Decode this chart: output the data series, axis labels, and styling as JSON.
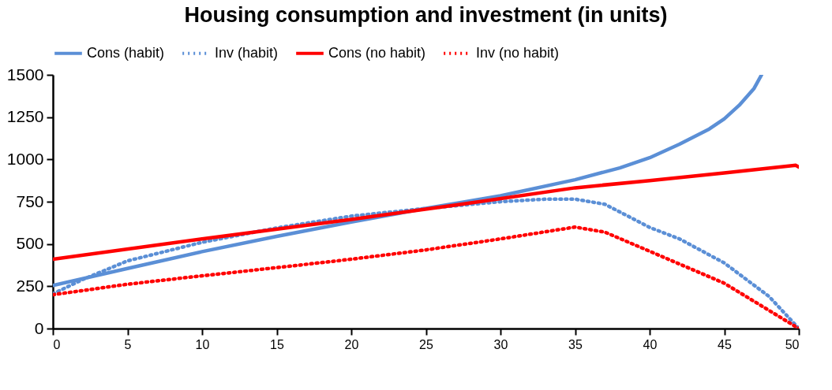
{
  "chart_data": {
    "type": "line",
    "title": "Housing consumption and investment (in units)",
    "xlim": [
      0,
      50
    ],
    "xticks": [
      0,
      5,
      10,
      15,
      20,
      25,
      30,
      35,
      40,
      45,
      50
    ],
    "ylim": [
      0,
      1500
    ],
    "yticks": [
      0,
      250,
      500,
      750,
      1000,
      1250,
      1500
    ],
    "grid": false,
    "legend": "top",
    "marker": "none",
    "series": [
      {
        "name": "Cons (habit)",
        "color": "#5b8fd6",
        "line_style": "solid",
        "x": [
          0,
          5,
          10,
          15,
          20,
          25,
          30,
          35,
          38,
          40,
          42,
          44,
          45,
          46,
          47,
          47.5
        ],
        "values": [
          255,
          355,
          455,
          545,
          630,
          710,
          785,
          880,
          950,
          1010,
          1090,
          1180,
          1240,
          1320,
          1420,
          1500
        ]
      },
      {
        "name": "Inv (habit)",
        "color": "#5b8fd6",
        "line_style": "dotted",
        "x": [
          0,
          2,
          5,
          10,
          15,
          20,
          25,
          30,
          33,
          35,
          37,
          40,
          42,
          45,
          48,
          50
        ],
        "values": [
          205,
          290,
          400,
          510,
          595,
          665,
          710,
          750,
          765,
          765,
          735,
          598,
          530,
          388,
          190,
          0
        ]
      },
      {
        "name": "Cons (no habit)",
        "color": "#ff0000",
        "line_style": "solid",
        "x": [
          0,
          10,
          20,
          27,
          35,
          40,
          45,
          49.8,
          50
        ],
        "values": [
          410,
          530,
          645,
          730,
          832,
          875,
          920,
          965,
          955
        ]
      },
      {
        "name": "Inv (no habit)",
        "color": "#ff0000",
        "line_style": "dotted",
        "x": [
          0,
          5,
          10,
          15,
          20,
          25,
          30,
          35,
          37,
          40,
          45,
          50
        ],
        "values": [
          200,
          262,
          312,
          360,
          410,
          465,
          530,
          600,
          570,
          457,
          268,
          0
        ]
      }
    ]
  }
}
